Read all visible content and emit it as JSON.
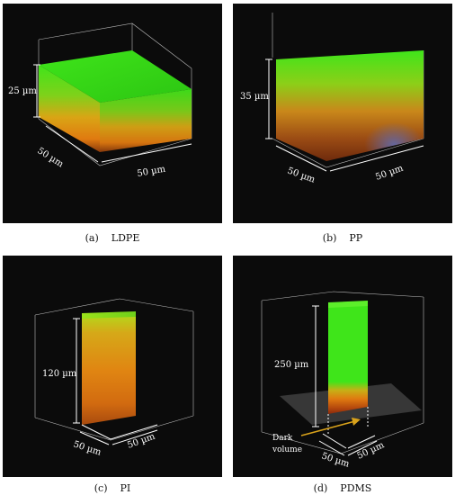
{
  "panels": [
    {
      "id": "a",
      "label": "(a)",
      "name": "LDPE",
      "dims": {
        "height": "25 µm",
        "depth": "50 µm",
        "width": "50 µm"
      }
    },
    {
      "id": "b",
      "label": "(b)",
      "name": "PP",
      "dims": {
        "height": "35 µm",
        "depth": "50 µm",
        "width": "50 µm"
      }
    },
    {
      "id": "c",
      "label": "(c)",
      "name": "PI",
      "dims": {
        "height": "120 µm",
        "depth": "50 µm",
        "width": "50 µm"
      }
    },
    {
      "id": "d",
      "label": "(d)",
      "name": "PDMS",
      "dims": {
        "height": "250 µm",
        "depth": "50 µm",
        "width": "50 µm"
      },
      "annotation": {
        "line1": "Dark",
        "line2": "volume",
        "arrow_color": "#d9a21b"
      }
    }
  ],
  "colors": {
    "background": "#0b0b0b",
    "green": "#3fe51a",
    "orange": "#e07a10",
    "red_brown": "#8a2a0c",
    "text": "#ffffff"
  }
}
